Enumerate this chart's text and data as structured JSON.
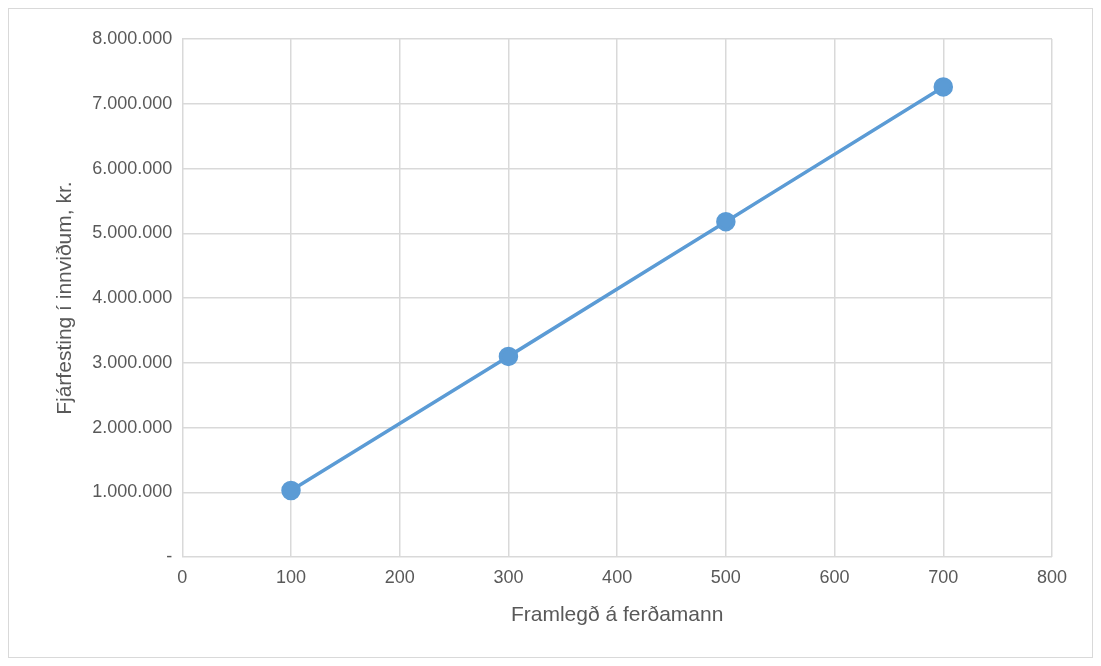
{
  "chart_data": {
    "type": "line",
    "xlabel": "Framlegð á ferðamann",
    "ylabel": "Fjárfesting í innviðum, kr.",
    "x": [
      100,
      300,
      500,
      700
    ],
    "series": [
      {
        "color": "#5b9bd5",
        "values": [
          1030000,
          3100000,
          5180000,
          7260000
        ]
      }
    ],
    "xlim": [
      0,
      800
    ],
    "xticks": [
      0,
      100,
      200,
      300,
      400,
      500,
      600,
      700,
      800
    ],
    "ylim": [
      0,
      8000000
    ],
    "yticks": [
      {
        "value": 0,
        "label": "-"
      },
      {
        "value": 1000000,
        "label": "1.000.000"
      },
      {
        "value": 2000000,
        "label": "2.000.000"
      },
      {
        "value": 3000000,
        "label": "3.000.000"
      },
      {
        "value": 4000000,
        "label": "4.000.000"
      },
      {
        "value": 5000000,
        "label": "5.000.000"
      },
      {
        "value": 6000000,
        "label": "6.000.000"
      },
      {
        "value": 7000000,
        "label": "7.000.000"
      },
      {
        "value": 8000000,
        "label": "8.000.000"
      }
    ],
    "grid": true,
    "legend": false,
    "marker": "circle",
    "line_style": "solid"
  }
}
